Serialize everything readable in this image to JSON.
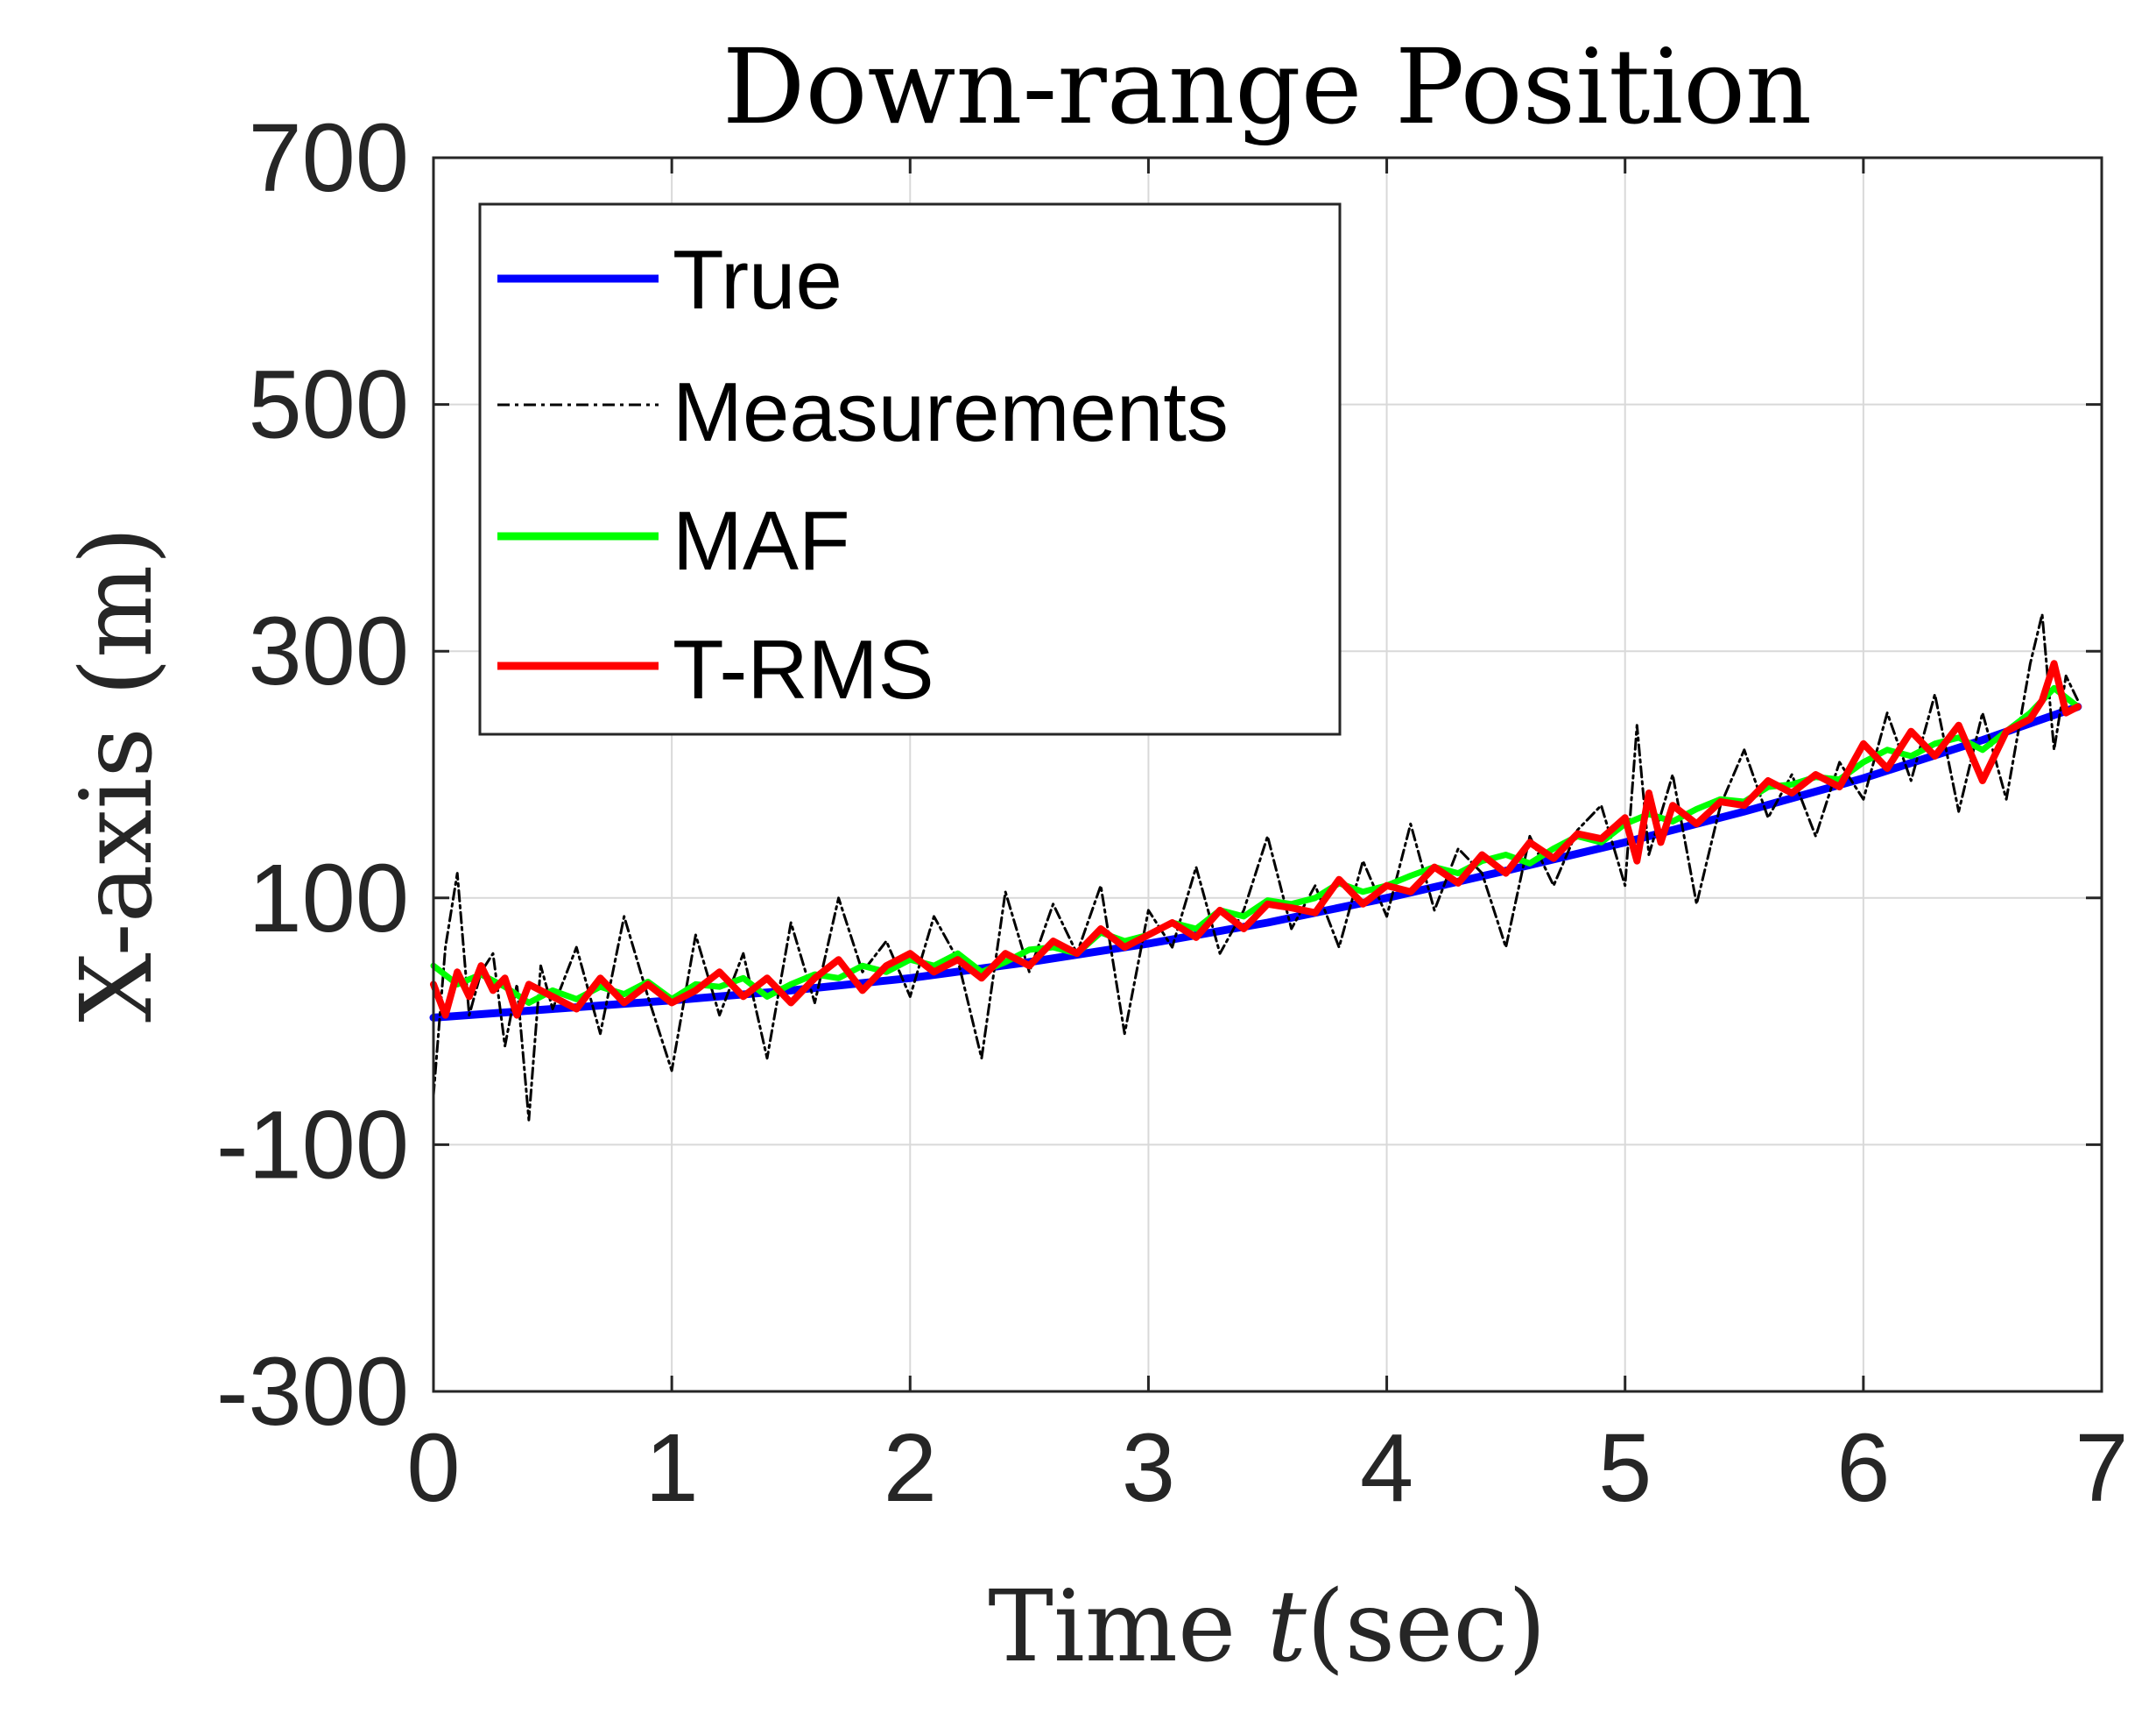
{
  "chart_data": {
    "type": "line",
    "title": "Down-range Position",
    "xlabel_prefix": "Time ",
    "xlabel_var": "t",
    "xlabel_suffix": "(sec)",
    "ylabel": "X-axis (m)",
    "xlim": [
      0,
      7
    ],
    "ylim": [
      -300,
      700
    ],
    "xticks": [
      0,
      1,
      2,
      3,
      4,
      5,
      6,
      7
    ],
    "yticks": [
      -300,
      -100,
      100,
      300,
      500,
      700
    ],
    "xtick_labels": [
      "0",
      "1",
      "2",
      "3",
      "4",
      "5",
      "6",
      "7"
    ],
    "ytick_labels": [
      "-300",
      "-100",
      "100",
      "300",
      "500",
      "700"
    ],
    "grid": true,
    "legend_position": "top-left",
    "series": [
      {
        "name": "True",
        "color": "#0000ff",
        "style": "solid",
        "x": [
          0,
          0.5,
          1.0,
          1.5,
          2.0,
          2.5,
          3.0,
          3.5,
          4.0,
          4.5,
          5.0,
          5.5,
          6.0,
          6.5,
          6.9
        ],
        "values": [
          3,
          10,
          17,
          25,
          35,
          48,
          63,
          80,
          100,
          122,
          145,
          170,
          197,
          228,
          255
        ]
      },
      {
        "name": "Measurements",
        "color": "#000000",
        "style": "dashdot",
        "x": [
          0,
          0.05,
          0.1,
          0.15,
          0.2,
          0.25,
          0.3,
          0.35,
          0.4,
          0.45,
          0.5,
          0.6,
          0.7,
          0.8,
          0.9,
          1.0,
          1.1,
          1.2,
          1.3,
          1.4,
          1.5,
          1.6,
          1.7,
          1.8,
          1.9,
          2.0,
          2.1,
          2.2,
          2.3,
          2.4,
          2.5,
          2.6,
          2.7,
          2.8,
          2.9,
          3.0,
          3.1,
          3.2,
          3.3,
          3.4,
          3.5,
          3.6,
          3.7,
          3.8,
          3.9,
          4.0,
          4.1,
          4.2,
          4.3,
          4.4,
          4.5,
          4.6,
          4.7,
          4.8,
          4.9,
          5.0,
          5.05,
          5.1,
          5.2,
          5.3,
          5.4,
          5.5,
          5.6,
          5.7,
          5.8,
          5.9,
          6.0,
          6.1,
          6.2,
          6.3,
          6.4,
          6.5,
          6.6,
          6.7,
          6.75,
          6.8,
          6.85,
          6.9
        ],
        "values": [
          -60,
          60,
          120,
          5,
          40,
          55,
          -20,
          30,
          -80,
          45,
          10,
          60,
          -10,
          85,
          20,
          -40,
          70,
          5,
          55,
          -30,
          80,
          15,
          100,
          40,
          65,
          20,
          85,
          50,
          -30,
          105,
          40,
          95,
          55,
          110,
          -10,
          90,
          60,
          125,
          55,
          90,
          150,
          75,
          110,
          60,
          130,
          85,
          160,
          90,
          140,
          120,
          60,
          150,
          110,
          155,
          175,
          110,
          240,
          135,
          200,
          95,
          175,
          220,
          165,
          200,
          150,
          210,
          180,
          250,
          195,
          265,
          170,
          250,
          180,
          290,
          330,
          220,
          280,
          260
        ]
      },
      {
        "name": "MAF",
        "color": "#00ff00",
        "style": "solid",
        "x": [
          0,
          0.1,
          0.2,
          0.3,
          0.4,
          0.5,
          0.6,
          0.7,
          0.8,
          0.9,
          1.0,
          1.1,
          1.2,
          1.3,
          1.4,
          1.5,
          1.6,
          1.7,
          1.8,
          1.9,
          2.0,
          2.1,
          2.2,
          2.3,
          2.4,
          2.5,
          2.6,
          2.7,
          2.8,
          2.9,
          3.0,
          3.1,
          3.2,
          3.3,
          3.4,
          3.5,
          3.6,
          3.7,
          3.8,
          3.9,
          4.0,
          4.1,
          4.2,
          4.3,
          4.4,
          4.5,
          4.6,
          4.7,
          4.8,
          4.9,
          5.0,
          5.1,
          5.2,
          5.3,
          5.4,
          5.5,
          5.6,
          5.7,
          5.8,
          5.9,
          6.0,
          6.1,
          6.2,
          6.3,
          6.4,
          6.5,
          6.6,
          6.7,
          6.8,
          6.9
        ],
        "values": [
          45,
          30,
          38,
          28,
          15,
          25,
          18,
          28,
          22,
          32,
          18,
          30,
          28,
          35,
          20,
          30,
          38,
          35,
          45,
          40,
          50,
          45,
          55,
          40,
          48,
          58,
          60,
          55,
          72,
          65,
          70,
          80,
          75,
          90,
          85,
          98,
          95,
          100,
          112,
          105,
          110,
          118,
          125,
          120,
          130,
          135,
          128,
          140,
          150,
          145,
          160,
          168,
          162,
          172,
          180,
          178,
          190,
          192,
          198,
          196,
          210,
          220,
          215,
          225,
          230,
          220,
          235,
          250,
          270,
          255
        ]
      },
      {
        "name": "T-RMS",
        "color": "#ff0000",
        "style": "solid",
        "x": [
          0,
          0.05,
          0.1,
          0.15,
          0.2,
          0.25,
          0.3,
          0.35,
          0.4,
          0.5,
          0.6,
          0.7,
          0.8,
          0.9,
          1.0,
          1.1,
          1.2,
          1.3,
          1.4,
          1.5,
          1.6,
          1.7,
          1.8,
          1.9,
          2.0,
          2.1,
          2.2,
          2.3,
          2.4,
          2.5,
          2.6,
          2.7,
          2.8,
          2.9,
          3.0,
          3.1,
          3.2,
          3.3,
          3.4,
          3.5,
          3.6,
          3.7,
          3.8,
          3.9,
          4.0,
          4.1,
          4.2,
          4.3,
          4.4,
          4.5,
          4.6,
          4.7,
          4.8,
          4.9,
          5.0,
          5.05,
          5.1,
          5.15,
          5.2,
          5.3,
          5.4,
          5.5,
          5.6,
          5.7,
          5.8,
          5.9,
          6.0,
          6.1,
          6.2,
          6.3,
          6.4,
          6.5,
          6.55,
          6.6,
          6.7,
          6.75,
          6.8,
          6.85,
          6.9
        ],
        "values": [
          30,
          5,
          40,
          20,
          45,
          25,
          35,
          5,
          30,
          20,
          10,
          35,
          15,
          30,
          15,
          25,
          40,
          20,
          35,
          15,
          35,
          50,
          25,
          45,
          55,
          40,
          50,
          35,
          55,
          45,
          65,
          55,
          75,
          60,
          70,
          80,
          68,
          90,
          75,
          95,
          92,
          88,
          115,
          95,
          110,
          105,
          125,
          112,
          135,
          120,
          145,
          132,
          152,
          148,
          165,
          130,
          185,
          145,
          175,
          160,
          178,
          175,
          195,
          185,
          200,
          190,
          225,
          205,
          235,
          215,
          240,
          195,
          215,
          235,
          245,
          260,
          290,
          250,
          255
        ]
      }
    ]
  }
}
